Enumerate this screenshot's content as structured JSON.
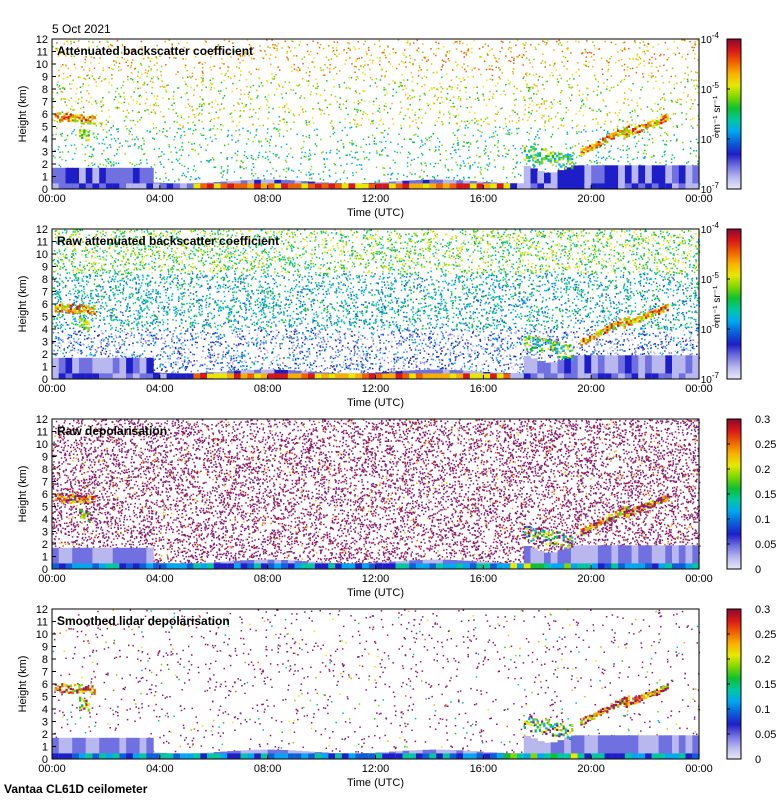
{
  "figure": {
    "date": "5 Oct 2021",
    "footer": "Vantaa CL61D ceilometer"
  },
  "colors": {
    "rainbow": [
      "#e8e8f8",
      "#b8b8ef",
      "#7070e0",
      "#1e1ec8",
      "#0b5fd8",
      "#00a8f0",
      "#00c8a0",
      "#10c030",
      "#80d800",
      "#e8e800",
      "#f8b000",
      "#f06000",
      "#d81818",
      "#8a0830"
    ],
    "purple": "#8b1a6b",
    "panel_border": "#000000"
  },
  "chart_data": [
    {
      "type": "heatmap",
      "title": "Attenuated backscatter coefficient",
      "xlabel": "Time (UTC)",
      "ylabel": "Height (km)",
      "x_ticks": [
        "00:00",
        "04:00",
        "08:00",
        "12:00",
        "16:00",
        "20:00",
        "00:00"
      ],
      "xlim": [
        0,
        24
      ],
      "ylim": [
        0,
        12
      ],
      "y_ticks": [
        "0",
        "1",
        "2",
        "3",
        "4",
        "5",
        "6",
        "7",
        "8",
        "9",
        "10",
        "11",
        "12"
      ],
      "colorbar": {
        "scale": "log",
        "range": [
          1e-07,
          0.0001
        ],
        "tick_exponents": [
          "-4",
          "-5",
          "-6",
          "-7"
        ],
        "unit_label": "m⁻¹ sr⁻¹"
      },
      "variant": "beta"
    },
    {
      "type": "heatmap",
      "title": "Raw attenuated backscatter coefficient",
      "xlabel": "Time (UTC)",
      "ylabel": "Height (km)",
      "x_ticks": [
        "00:00",
        "04:00",
        "08:00",
        "12:00",
        "16:00",
        "20:00",
        "00:00"
      ],
      "xlim": [
        0,
        24
      ],
      "ylim": [
        0,
        12
      ],
      "y_ticks": [
        "0",
        "1",
        "2",
        "3",
        "4",
        "5",
        "6",
        "7",
        "8",
        "9",
        "10",
        "11",
        "12"
      ],
      "colorbar": {
        "scale": "log",
        "range": [
          1e-07,
          0.0001
        ],
        "tick_exponents": [
          "-4",
          "-5",
          "-6",
          "-7"
        ],
        "unit_label": "m⁻¹ sr⁻¹"
      },
      "variant": "beta_raw"
    },
    {
      "type": "heatmap",
      "title": "Raw depolarisation",
      "xlabel": "Time (UTC)",
      "ylabel": "Height (km)",
      "x_ticks": [
        "00:00",
        "04:00",
        "08:00",
        "12:00",
        "16:00",
        "20:00",
        "00:00"
      ],
      "xlim": [
        0,
        24
      ],
      "ylim": [
        0,
        12
      ],
      "y_ticks": [
        "0",
        "1",
        "2",
        "3",
        "4",
        "5",
        "6",
        "7",
        "8",
        "9",
        "10",
        "11",
        "12"
      ],
      "colorbar": {
        "scale": "linear",
        "range": [
          0,
          0.3
        ],
        "tick_labels": [
          "0.3",
          "0.25",
          "0.2",
          "0.15",
          "0.1",
          "0.05",
          "0"
        ],
        "unit_label": ""
      },
      "variant": "depol_raw"
    },
    {
      "type": "heatmap",
      "title": "Smoothed lidar depolarisation",
      "xlabel": "Time (UTC)",
      "ylabel": "Height (km)",
      "x_ticks": [
        "00:00",
        "04:00",
        "08:00",
        "12:00",
        "16:00",
        "20:00",
        "00:00"
      ],
      "xlim": [
        0,
        24
      ],
      "ylim": [
        0,
        12
      ],
      "y_ticks": [
        "0",
        "1",
        "2",
        "3",
        "4",
        "5",
        "6",
        "7",
        "8",
        "9",
        "10",
        "11",
        "12"
      ],
      "colorbar": {
        "scale": "linear",
        "range": [
          0,
          0.3
        ],
        "tick_labels": [
          "0.3",
          "0.25",
          "0.2",
          "0.15",
          "0.1",
          "0.05",
          "0"
        ],
        "unit_label": ""
      },
      "variant": "depol"
    }
  ]
}
